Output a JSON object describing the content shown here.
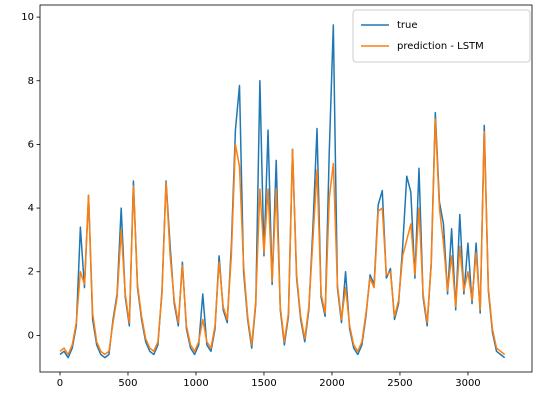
{
  "chart_data": {
    "type": "line",
    "x": [
      0,
      30,
      60,
      90,
      120,
      150,
      180,
      210,
      240,
      270,
      300,
      330,
      360,
      390,
      420,
      450,
      480,
      510,
      540,
      570,
      600,
      630,
      660,
      690,
      720,
      750,
      780,
      810,
      840,
      870,
      900,
      930,
      960,
      990,
      1020,
      1050,
      1080,
      1110,
      1140,
      1170,
      1200,
      1230,
      1260,
      1290,
      1320,
      1350,
      1380,
      1410,
      1440,
      1470,
      1500,
      1530,
      1560,
      1590,
      1620,
      1650,
      1680,
      1710,
      1740,
      1770,
      1800,
      1830,
      1860,
      1890,
      1920,
      1950,
      1980,
      2010,
      2040,
      2070,
      2100,
      2130,
      2160,
      2190,
      2220,
      2250,
      2280,
      2310,
      2340,
      2370,
      2400,
      2430,
      2460,
      2490,
      2520,
      2550,
      2580,
      2610,
      2640,
      2670,
      2700,
      2730,
      2760,
      2790,
      2820,
      2850,
      2880,
      2910,
      2940,
      2970,
      3000,
      3030,
      3060,
      3090,
      3120,
      3150,
      3180,
      3210,
      3240,
      3270
    ],
    "series": [
      {
        "name": "true",
        "color": "#1f77b4",
        "values": [
          -0.6,
          -0.5,
          -0.7,
          -0.4,
          0.3,
          3.4,
          1.5,
          4.4,
          0.5,
          -0.3,
          -0.6,
          -0.7,
          -0.6,
          0.5,
          1.3,
          4.0,
          1.2,
          0.3,
          4.85,
          1.5,
          0.5,
          -0.2,
          -0.5,
          -0.6,
          -0.3,
          1.4,
          4.85,
          2.8,
          1.0,
          0.3,
          2.3,
          0.2,
          -0.4,
          -0.6,
          -0.3,
          1.3,
          -0.3,
          -0.5,
          0.2,
          2.5,
          0.8,
          0.4,
          2.8,
          6.45,
          7.85,
          2.0,
          0.5,
          -0.4,
          1.0,
          8.0,
          2.5,
          6.45,
          1.6,
          5.5,
          0.8,
          -0.3,
          0.6,
          5.85,
          1.8,
          0.5,
          -0.2,
          0.8,
          3.4,
          6.5,
          1.2,
          0.6,
          5.75,
          9.75,
          1.5,
          0.4,
          2.0,
          0.2,
          -0.4,
          -0.6,
          -0.3,
          0.6,
          1.9,
          1.6,
          4.1,
          4.55,
          1.8,
          2.1,
          0.5,
          1.0,
          2.8,
          5.0,
          4.5,
          1.8,
          5.25,
          1.2,
          0.3,
          2.3,
          7.0,
          4.2,
          3.5,
          1.3,
          3.35,
          0.8,
          3.8,
          1.3,
          2.9,
          1.0,
          2.9,
          0.7,
          6.6,
          1.4,
          0.1,
          -0.5,
          -0.6,
          -0.7
        ]
      },
      {
        "name": "prediction - LSTM",
        "color": "#ff7f0e",
        "values": [
          -0.5,
          -0.4,
          -0.6,
          -0.3,
          0.4,
          2.0,
          1.6,
          4.4,
          0.7,
          -0.2,
          -0.5,
          -0.6,
          -0.5,
          0.4,
          1.2,
          3.3,
          1.3,
          0.4,
          4.7,
          1.6,
          0.6,
          -0.1,
          -0.4,
          -0.5,
          -0.2,
          1.3,
          4.8,
          2.5,
          1.1,
          0.4,
          2.2,
          0.3,
          -0.3,
          -0.5,
          -0.2,
          0.5,
          -0.2,
          -0.4,
          0.3,
          2.3,
          0.9,
          0.5,
          2.5,
          6.0,
          5.3,
          2.2,
          0.6,
          -0.3,
          1.1,
          4.6,
          2.6,
          4.6,
          1.7,
          4.6,
          0.9,
          -0.2,
          0.7,
          5.85,
          1.9,
          0.6,
          -0.1,
          0.9,
          3.0,
          5.2,
          1.3,
          0.7,
          4.3,
          5.4,
          1.6,
          0.5,
          1.5,
          0.3,
          -0.3,
          -0.5,
          -0.2,
          0.7,
          1.8,
          1.5,
          3.9,
          4.0,
          1.9,
          2.0,
          0.6,
          1.1,
          2.5,
          3.0,
          3.5,
          1.9,
          4.0,
          1.3,
          0.4,
          2.2,
          6.8,
          4.0,
          2.9,
          1.4,
          2.5,
          0.9,
          2.8,
          1.4,
          2.0,
          1.1,
          2.6,
          0.8,
          6.4,
          1.5,
          0.2,
          -0.4,
          -0.5,
          -0.6
        ]
      }
    ],
    "xlim": [
      -147,
      3471
    ],
    "ylim": [
      -1.15,
      10.38
    ],
    "xticks": [
      0,
      500,
      1000,
      1500,
      2000,
      2500,
      3000
    ],
    "yticks": [
      0,
      2,
      4,
      6,
      8,
      10
    ],
    "legend": "upper right",
    "grid": false
  }
}
